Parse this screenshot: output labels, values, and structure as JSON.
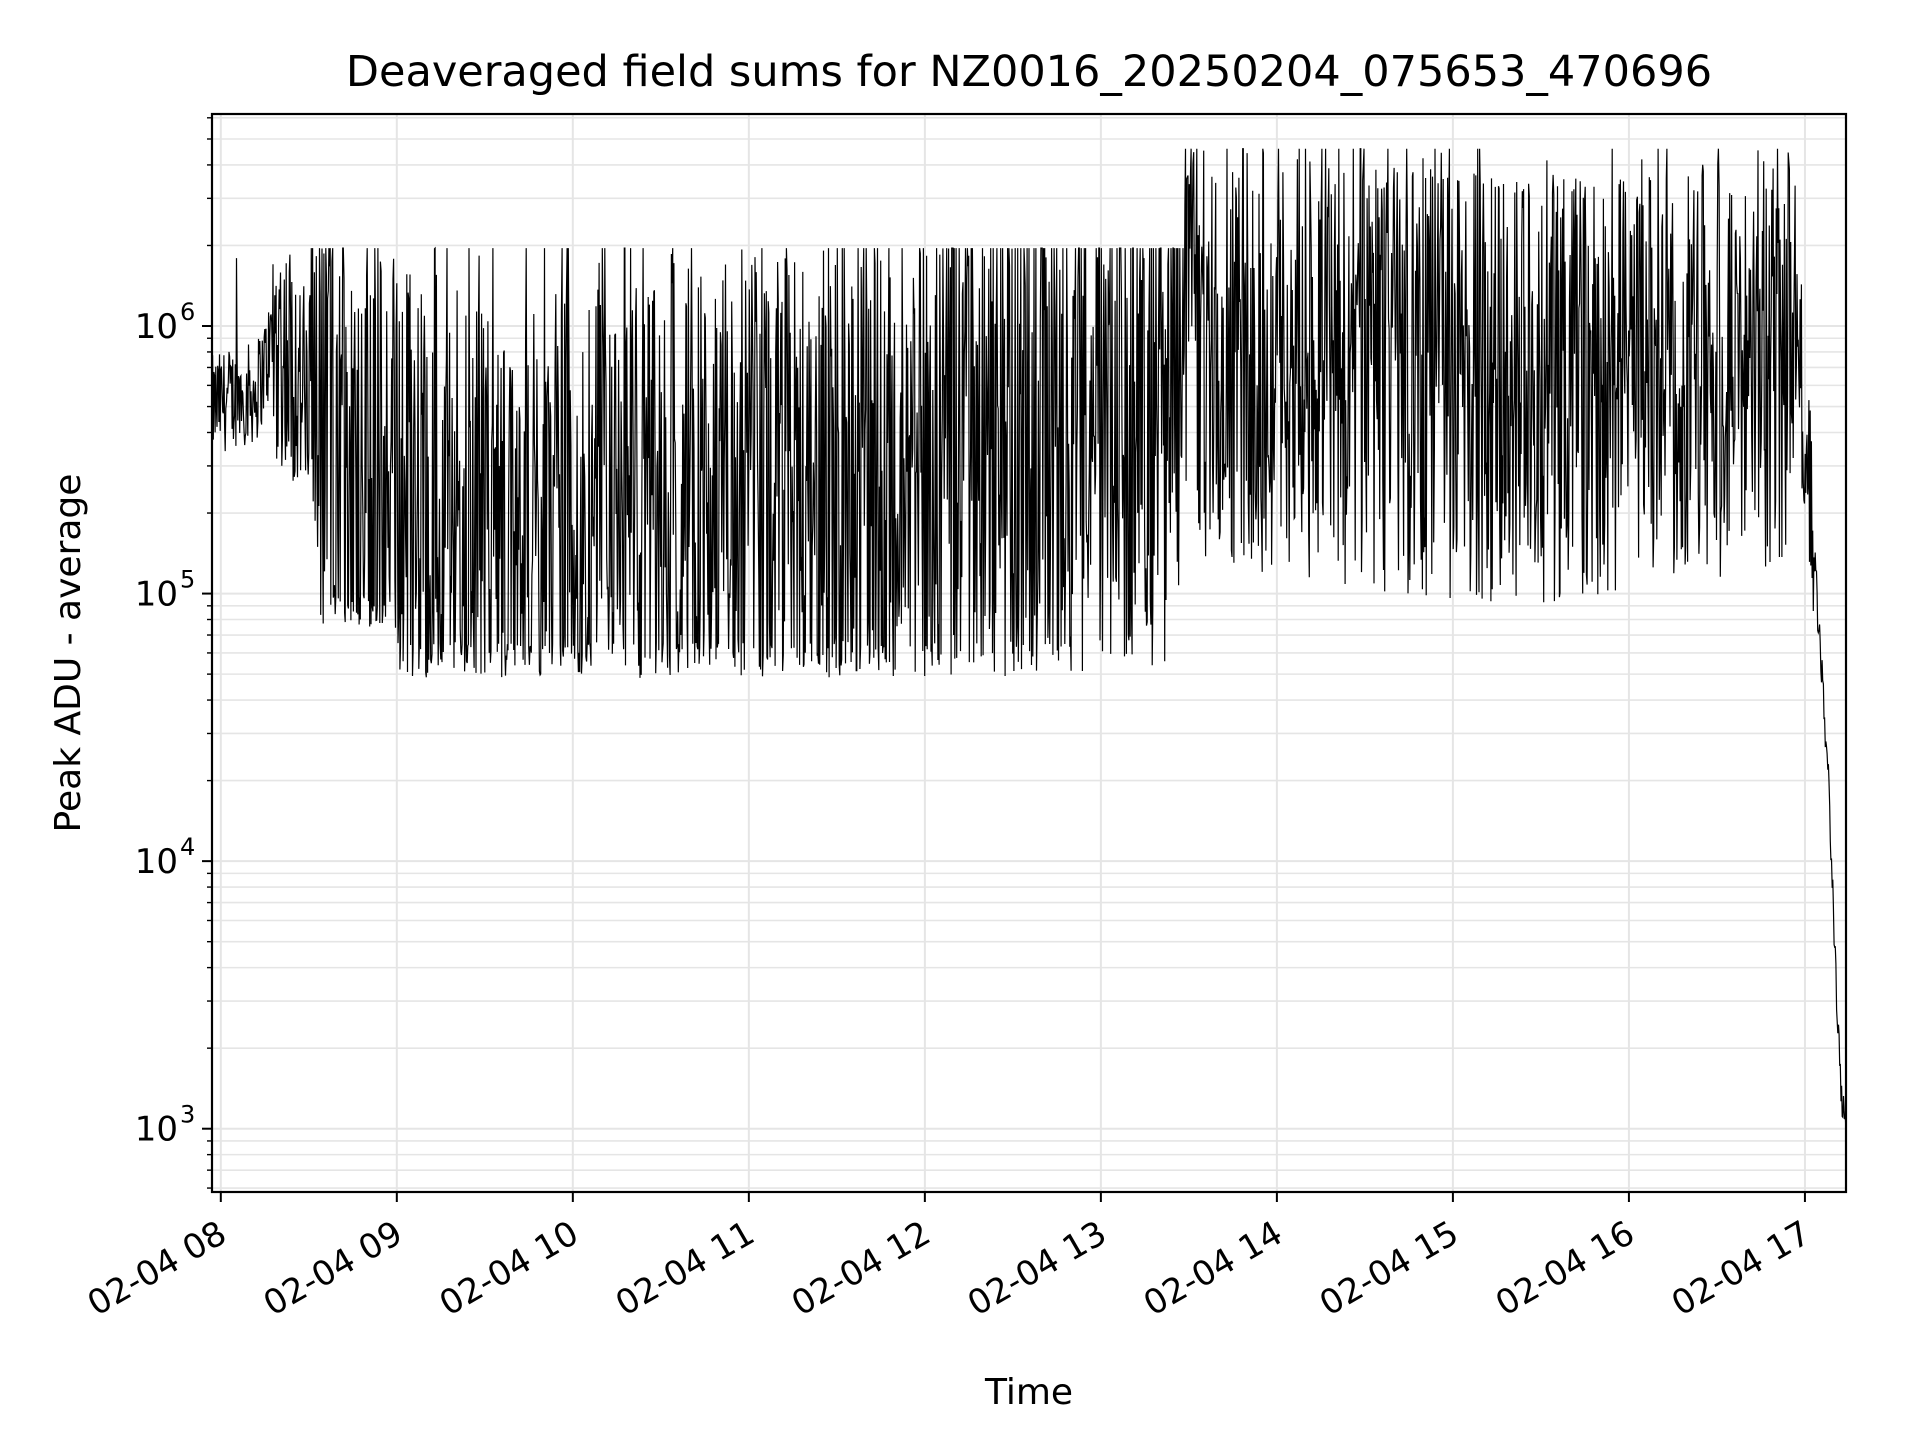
{
  "chart_data": {
    "type": "line",
    "title": "Deaveraged field sums for NZ0016_20250204_075653_470696",
    "xlabel": "Time",
    "ylabel": "Peak ADU - average",
    "yscale": "log",
    "ylim": [
      580,
      6200000
    ],
    "xlim": [
      "2025-02-04 07:57",
      "2025-02-04 17:14"
    ],
    "grid": true,
    "line_color": "#000000",
    "grid_color": "#e5e5e5",
    "x_ticks": [
      {
        "t": "2025-02-04 08:00",
        "label": "02-04 08"
      },
      {
        "t": "2025-02-04 09:00",
        "label": "02-04 09"
      },
      {
        "t": "2025-02-04 10:00",
        "label": "02-04 10"
      },
      {
        "t": "2025-02-04 11:00",
        "label": "02-04 11"
      },
      {
        "t": "2025-02-04 12:00",
        "label": "02-04 12"
      },
      {
        "t": "2025-02-04 13:00",
        "label": "02-04 13"
      },
      {
        "t": "2025-02-04 14:00",
        "label": "02-04 14"
      },
      {
        "t": "2025-02-04 15:00",
        "label": "02-04 15"
      },
      {
        "t": "2025-02-04 16:00",
        "label": "02-04 16"
      },
      {
        "t": "2025-02-04 17:00",
        "label": "02-04 17"
      }
    ],
    "y_ticks": [
      {
        "value": 1000,
        "base": "10",
        "exp": "3"
      },
      {
        "value": 10000,
        "base": "10",
        "exp": "4"
      },
      {
        "value": 100000,
        "base": "10",
        "exp": "5"
      },
      {
        "value": 1000000,
        "base": "10",
        "exp": "6"
      }
    ],
    "series": [
      {
        "points": [
          [
            "2025-02-04 07:57",
            500000
          ],
          [
            "2025-02-04 08:05",
            550000
          ],
          [
            "2025-02-04 08:12",
            560000
          ],
          [
            "2025-02-04 08:18",
            900000
          ],
          [
            "2025-02-04 08:25",
            700000
          ],
          [
            "2025-02-04 08:32",
            350000
          ],
          [
            "2025-02-04 08:45",
            250000
          ],
          [
            "2025-02-04 09:00",
            220000
          ],
          [
            "2025-02-04 09:15",
            160000
          ],
          [
            "2025-02-04 09:30",
            140000
          ],
          [
            "2025-02-04 10:00",
            150000
          ],
          [
            "2025-02-04 10:30",
            160000
          ],
          [
            "2025-02-04 11:00",
            200000
          ],
          [
            "2025-02-04 11:30",
            230000
          ],
          [
            "2025-02-04 12:00",
            260000
          ],
          [
            "2025-02-04 12:30",
            350000
          ],
          [
            "2025-02-04 13:00",
            400000
          ],
          [
            "2025-02-04 13:25",
            420000
          ],
          [
            "2025-02-04 13:30",
            800000
          ],
          [
            "2025-02-04 14:00",
            700000
          ],
          [
            "2025-02-04 14:30",
            650000
          ],
          [
            "2025-02-04 15:00",
            600000
          ],
          [
            "2025-02-04 15:30",
            550000
          ],
          [
            "2025-02-04 16:00",
            600000
          ],
          [
            "2025-02-04 16:30",
            620000
          ],
          [
            "2025-02-04 16:55",
            900000
          ],
          [
            "2025-02-04 17:00",
            500000
          ],
          [
            "2025-02-04 17:04",
            100000
          ],
          [
            "2025-02-04 17:08",
            20000
          ],
          [
            "2025-02-04 17:12",
            1500
          ],
          [
            "2025-02-04 17:14",
            900
          ]
        ]
      }
    ]
  }
}
